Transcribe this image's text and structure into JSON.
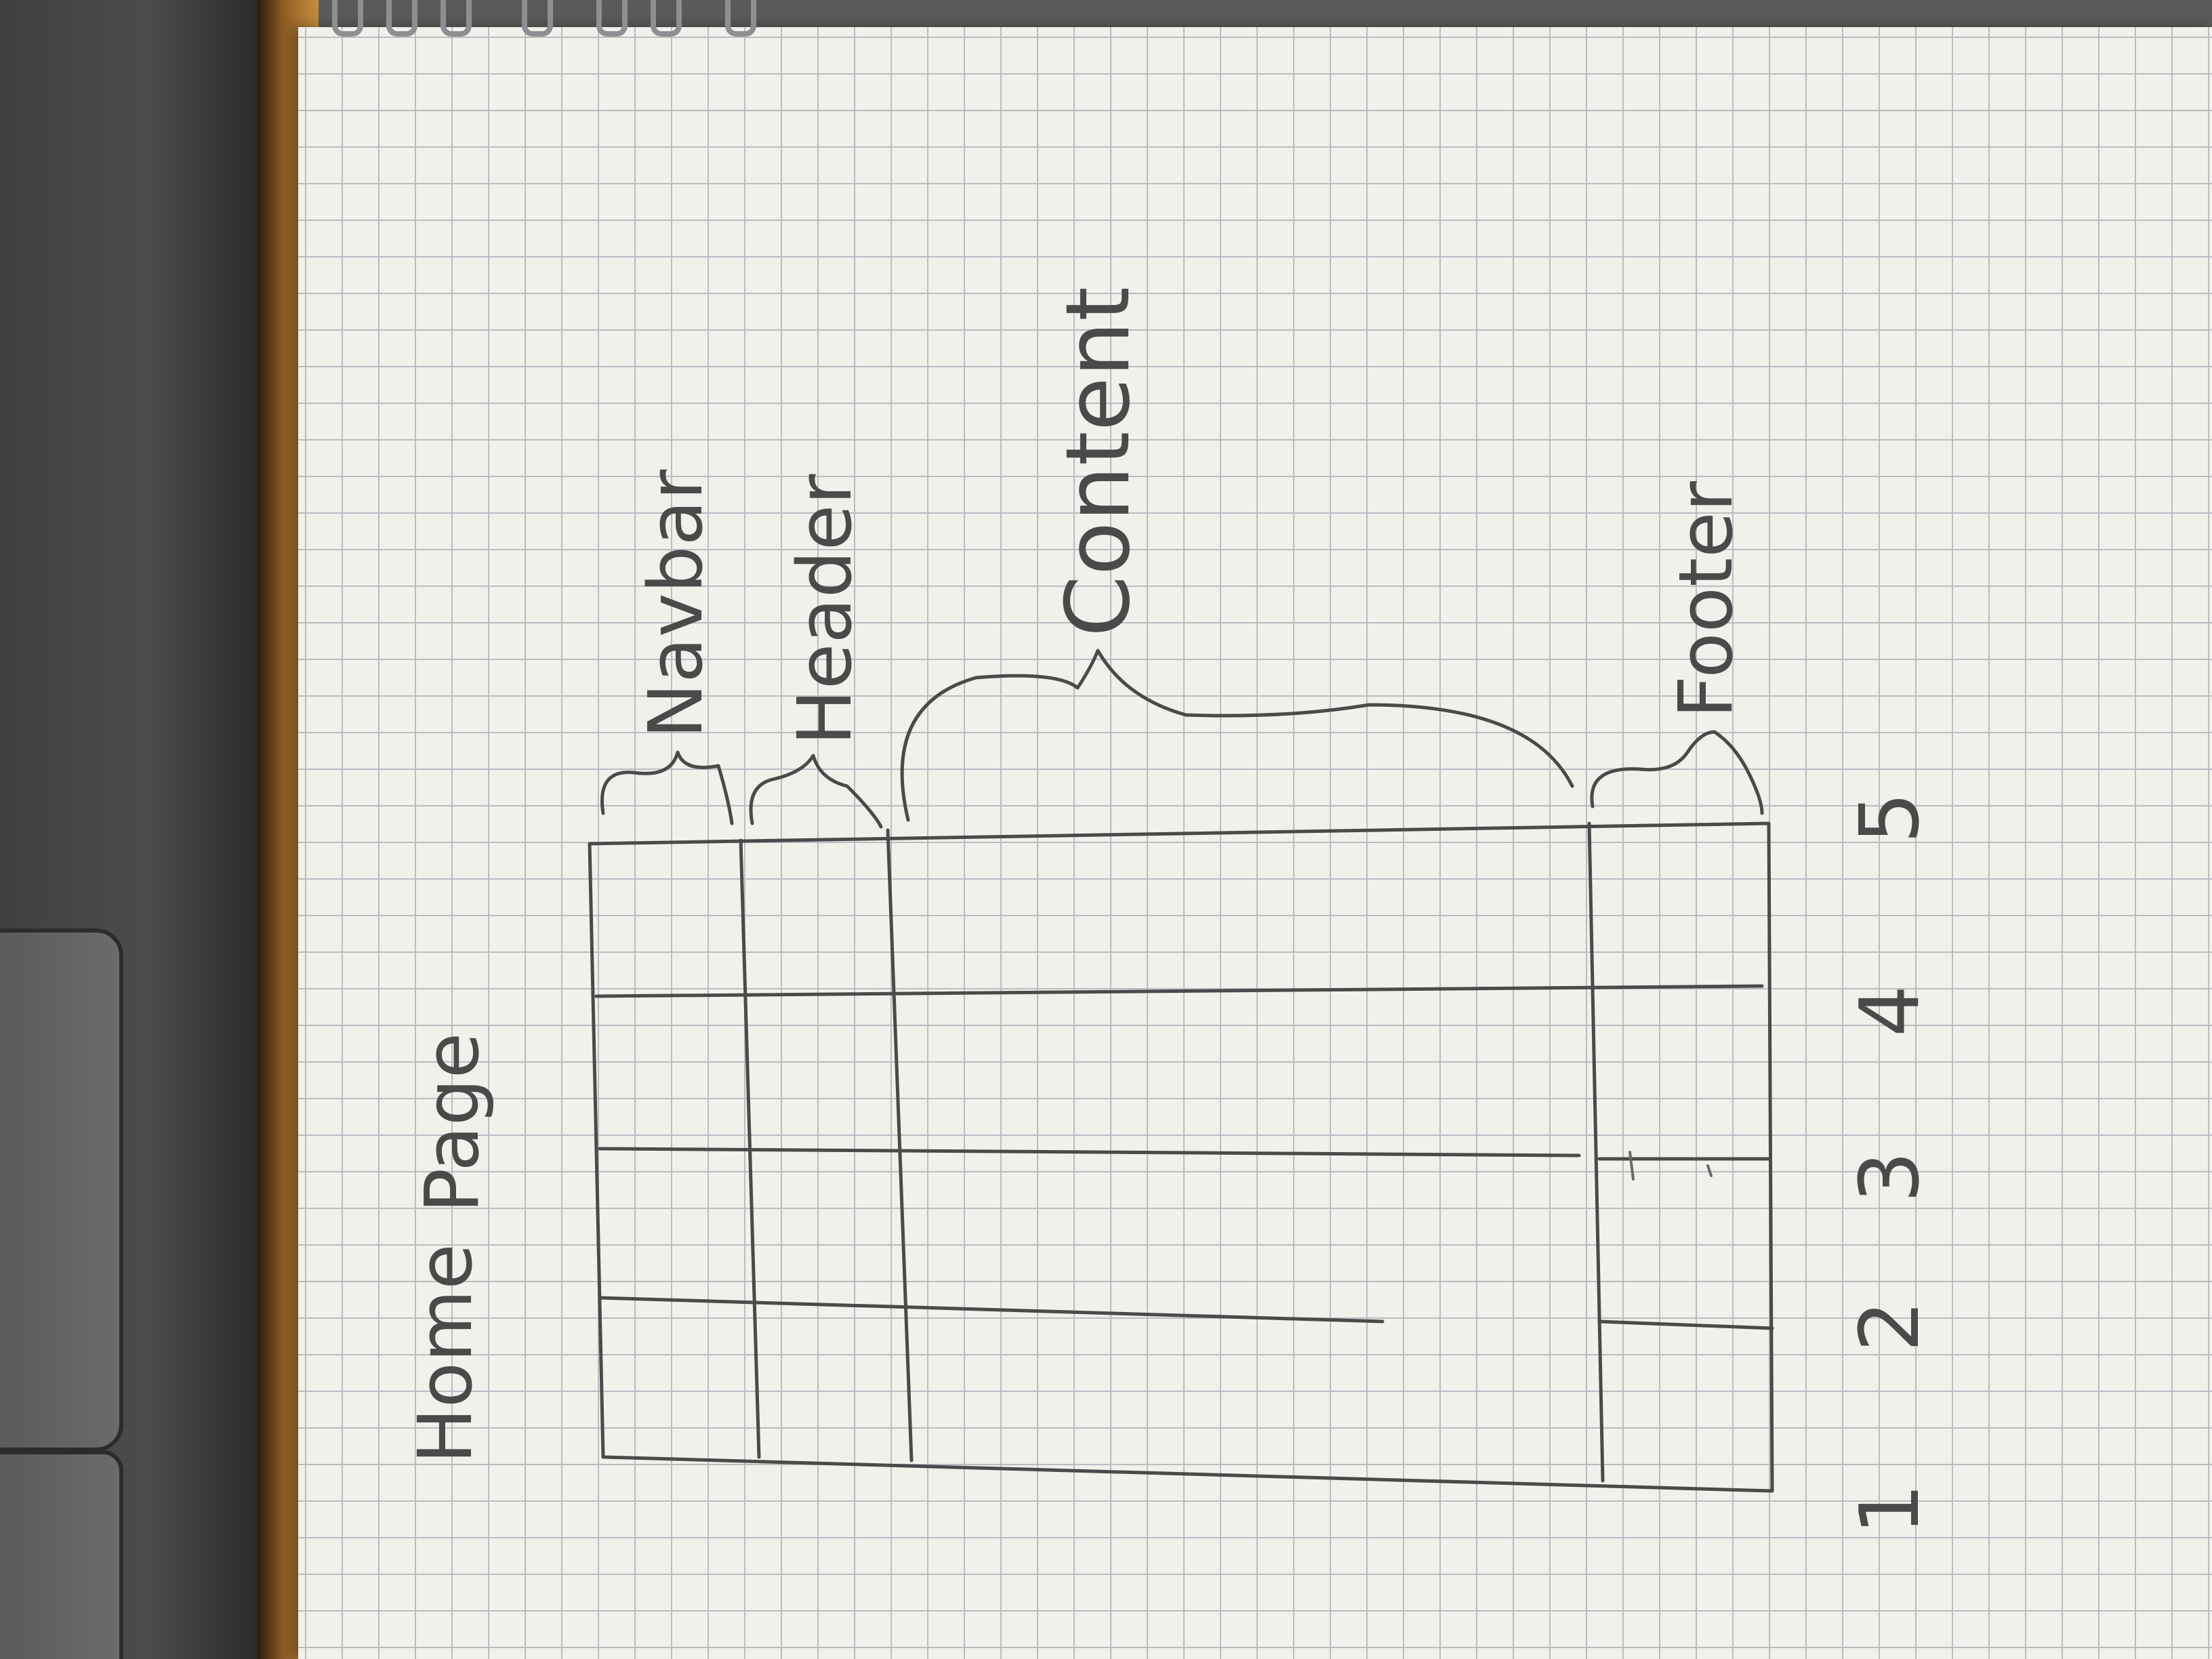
{
  "labels": {
    "home": "Home",
    "page": "Page",
    "navbar": "Navbar",
    "header": "Header",
    "content": "Content",
    "footer": "Footer"
  },
  "column_numbers": [
    "1",
    "2",
    "3",
    "4",
    "5"
  ]
}
